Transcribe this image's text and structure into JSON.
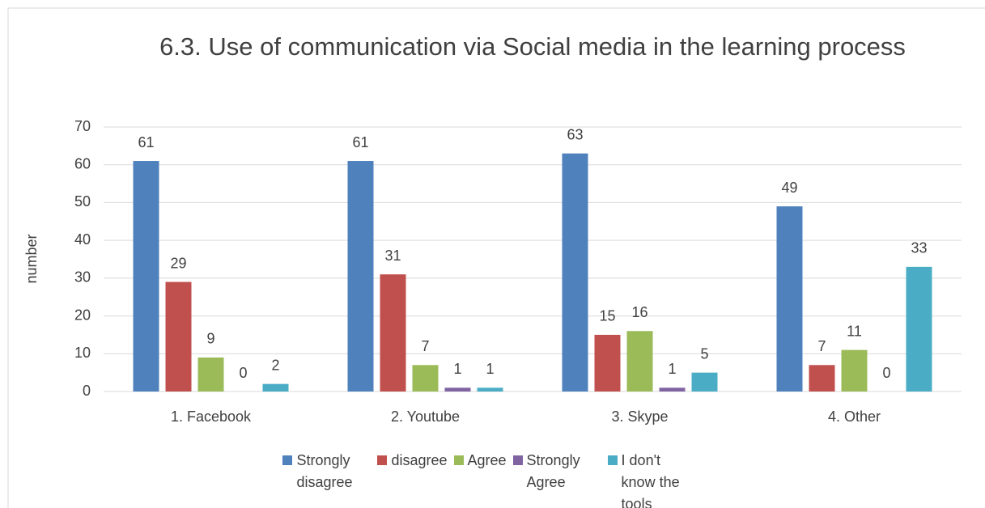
{
  "chart_data": {
    "type": "bar",
    "title": "6.3. Use of communication via Social media in the learning process",
    "ylabel": "number",
    "categories": [
      "1. Facebook",
      "2. Youtube",
      "3. Skype",
      "4. Other"
    ],
    "series": [
      {
        "name": "Strongly disagree",
        "color": "#4f81bd",
        "values": [
          61,
          61,
          63,
          49
        ]
      },
      {
        "name": "disagree",
        "color": "#c0504d",
        "values": [
          29,
          31,
          15,
          7
        ]
      },
      {
        "name": "Agree",
        "color": "#9bbb59",
        "values": [
          9,
          7,
          16,
          11
        ]
      },
      {
        "name": "Strongly Agree",
        "color": "#8064a2",
        "values": [
          0,
          1,
          1,
          0
        ]
      },
      {
        "name": "I don't know the tools",
        "color": "#4bacc6",
        "values": [
          2,
          1,
          5,
          33
        ]
      }
    ],
    "ylim": [
      0,
      70
    ],
    "yticks": [
      0,
      10,
      20,
      30,
      40,
      50,
      60,
      70
    ],
    "grid": true,
    "legend": "bottom"
  }
}
